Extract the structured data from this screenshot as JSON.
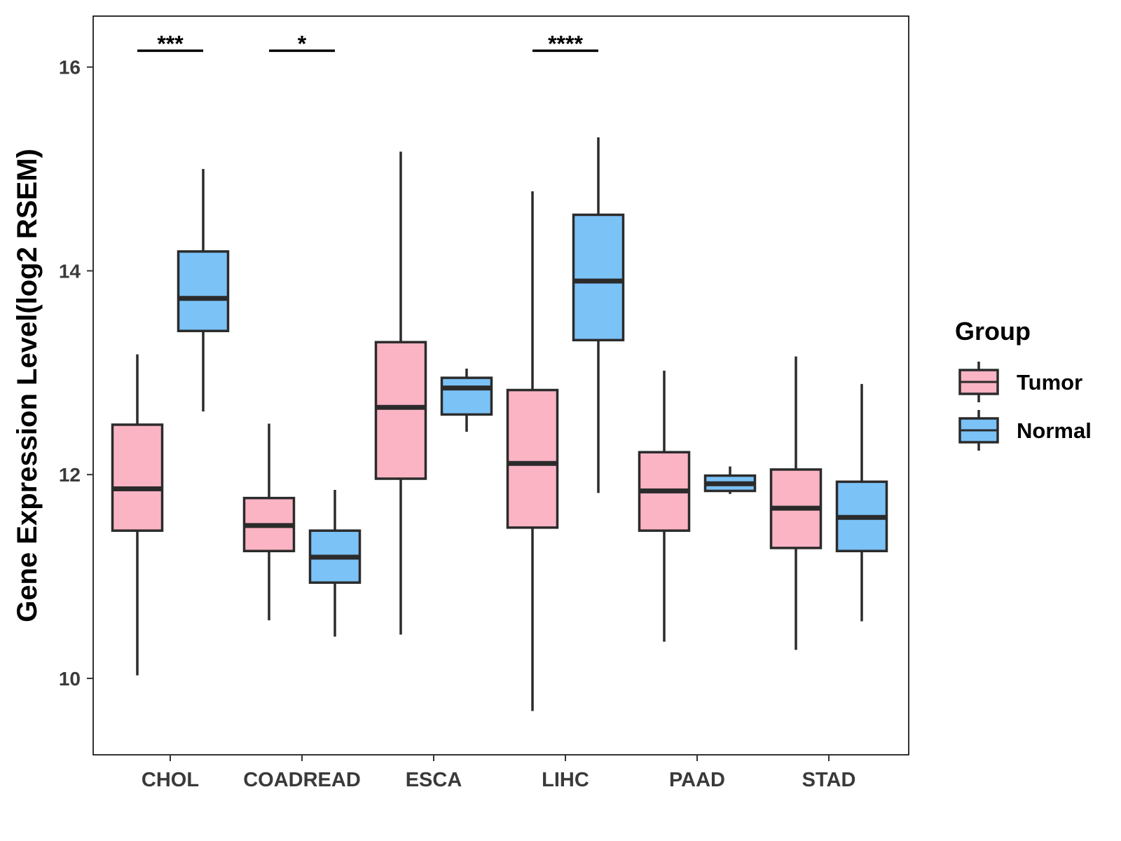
{
  "chart_data": {
    "type": "boxplot",
    "title": "",
    "xlabel": "",
    "ylabel": "Gene Expression Level(log2 RSEM)",
    "ylim": [
      9.25,
      16.5
    ],
    "yticks": [
      10,
      12,
      14,
      16
    ],
    "ytick_labels": [
      "10",
      "12",
      "14",
      "16"
    ],
    "categories": [
      "CHOL",
      "COADREAD",
      "ESCA",
      "LIHC",
      "PAAD",
      "STAD"
    ],
    "legend": {
      "title": "Group",
      "position": "right",
      "entries": [
        {
          "name": "Tumor",
          "color": "#fbb4c4"
        },
        {
          "name": "Normal",
          "color": "#7bc2f7"
        }
      ]
    },
    "series": [
      {
        "name": "Tumor",
        "color": "#fbb4c4",
        "boxes": [
          {
            "category": "CHOL",
            "whisker_low": 10.03,
            "q1": 11.45,
            "median": 11.86,
            "q3": 12.49,
            "whisker_high": 13.18
          },
          {
            "category": "COADREAD",
            "whisker_low": 10.57,
            "q1": 11.25,
            "median": 11.5,
            "q3": 11.77,
            "whisker_high": 12.5
          },
          {
            "category": "ESCA",
            "whisker_low": 10.43,
            "q1": 11.96,
            "median": 12.66,
            "q3": 13.3,
            "whisker_high": 15.17
          },
          {
            "category": "LIHC",
            "whisker_low": 9.68,
            "q1": 11.48,
            "median": 12.11,
            "q3": 12.83,
            "whisker_high": 14.78
          },
          {
            "category": "PAAD",
            "whisker_low": 10.36,
            "q1": 11.45,
            "median": 11.84,
            "q3": 12.22,
            "whisker_high": 13.02
          },
          {
            "category": "STAD",
            "whisker_low": 10.28,
            "q1": 11.28,
            "median": 11.67,
            "q3": 12.05,
            "whisker_high": 13.16
          }
        ]
      },
      {
        "name": "Normal",
        "color": "#7bc2f7",
        "boxes": [
          {
            "category": "CHOL",
            "whisker_low": 12.62,
            "q1": 13.41,
            "median": 13.73,
            "q3": 14.19,
            "whisker_high": 15.0
          },
          {
            "category": "COADREAD",
            "whisker_low": 10.41,
            "q1": 10.94,
            "median": 11.19,
            "q3": 11.45,
            "whisker_high": 11.85
          },
          {
            "category": "ESCA",
            "whisker_low": 12.42,
            "q1": 12.59,
            "median": 12.85,
            "q3": 12.95,
            "whisker_high": 13.04
          },
          {
            "category": "LIHC",
            "whisker_low": 11.82,
            "q1": 13.32,
            "median": 13.9,
            "q3": 14.55,
            "whisker_high": 15.31
          },
          {
            "category": "PAAD",
            "whisker_low": 11.81,
            "q1": 11.84,
            "median": 11.91,
            "q3": 11.99,
            "whisker_high": 12.08
          },
          {
            "category": "STAD",
            "whisker_low": 10.56,
            "q1": 11.25,
            "median": 11.58,
            "q3": 11.93,
            "whisker_high": 12.89
          }
        ]
      }
    ],
    "annotations": [
      {
        "category": "CHOL",
        "label": "***",
        "y": 16.16
      },
      {
        "category": "COADREAD",
        "label": "*",
        "y": 16.16
      },
      {
        "category": "LIHC",
        "label": "****",
        "y": 16.16
      }
    ]
  }
}
